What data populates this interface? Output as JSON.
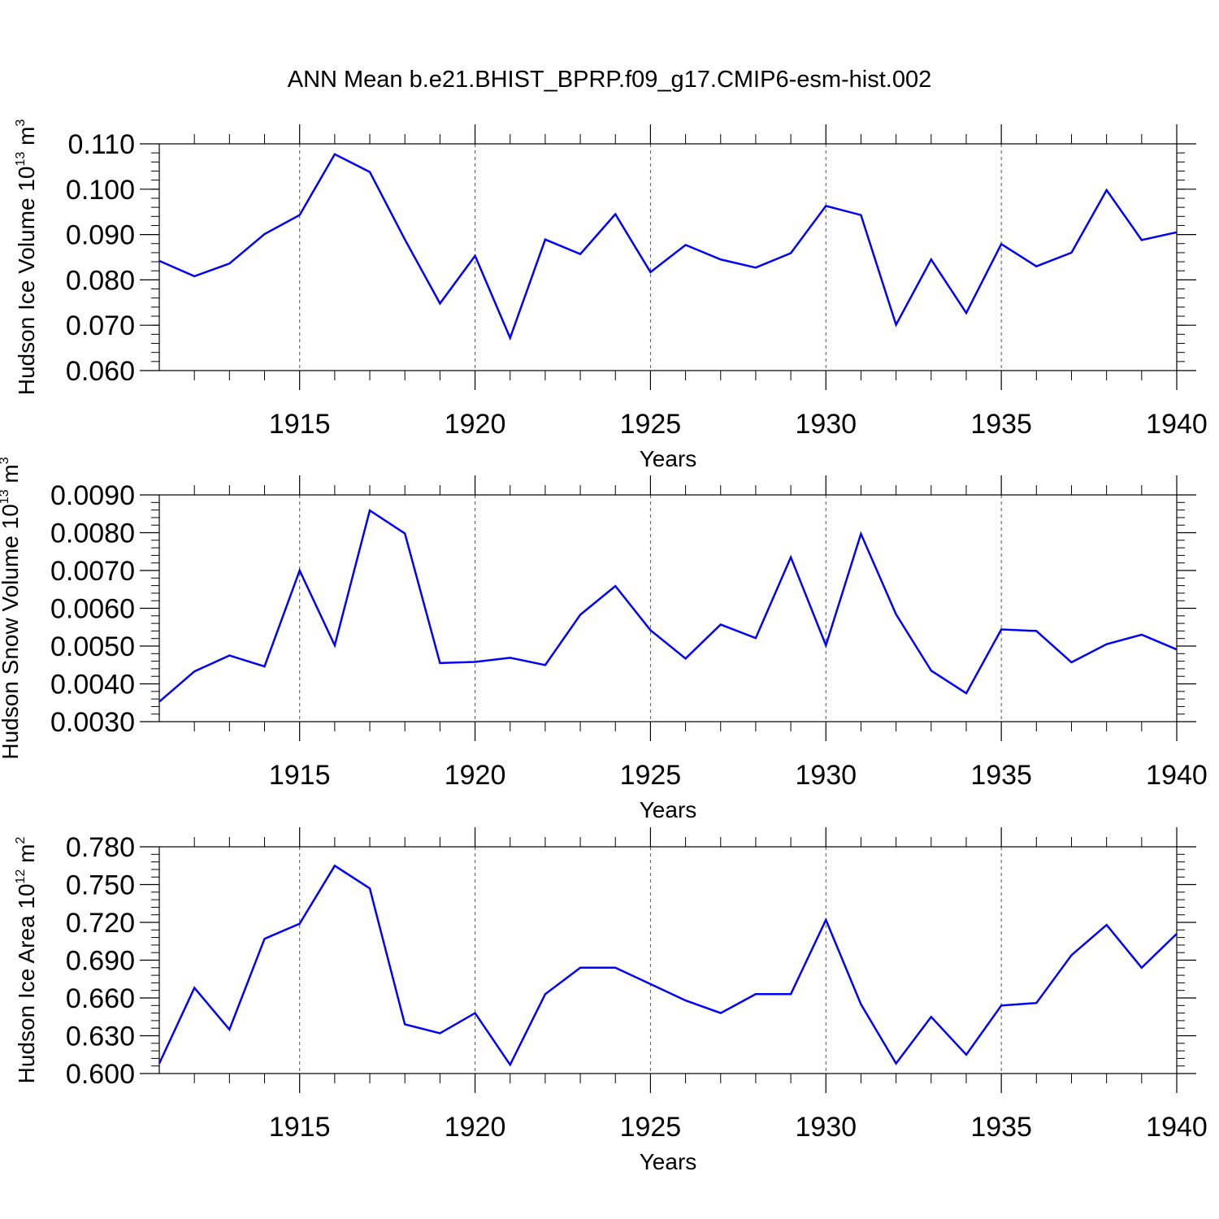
{
  "title": "ANN Mean b.e21.BHIST_BPRP.f09_g17.CMIP6-esm-hist.002",
  "colors": {
    "line": "#0000ff",
    "axis": "#000000",
    "grid": "#555555"
  },
  "chart_data": [
    {
      "type": "line",
      "ylabel_text": "Hudson Ice Volume 10",
      "ylabel_exp": "13",
      "ylabel_unit": " m",
      "ylabel_unit_exp": "3",
      "xlabel": "Years",
      "xlim": [
        1911,
        1940
      ],
      "ylim": [
        0.06,
        0.11
      ],
      "yticks": [
        "0.060",
        "0.070",
        "0.080",
        "0.090",
        "0.100",
        "0.110"
      ],
      "ytick_values": [
        0.06,
        0.07,
        0.08,
        0.09,
        0.1,
        0.11
      ],
      "ytick_minor_step": 0.002,
      "xticks": [
        1915,
        1920,
        1925,
        1930,
        1935,
        1940
      ],
      "x": [
        1911,
        1912,
        1913,
        1914,
        1915,
        1916,
        1917,
        1918,
        1919,
        1920,
        1921,
        1922,
        1923,
        1924,
        1925,
        1926,
        1927,
        1928,
        1929,
        1930,
        1931,
        1932,
        1933,
        1934,
        1935,
        1936,
        1937,
        1938,
        1939,
        1940
      ],
      "values": [
        0.0842,
        0.0808,
        0.0836,
        0.0901,
        0.0943,
        0.1077,
        0.1038,
        0.0889,
        0.0748,
        0.0853,
        0.0672,
        0.0889,
        0.0857,
        0.0945,
        0.0817,
        0.0877,
        0.0845,
        0.0827,
        0.0859,
        0.0963,
        0.0943,
        0.0701,
        0.0845,
        0.0727,
        0.0879,
        0.083,
        0.086,
        0.0998,
        0.0888,
        0.0905
      ]
    },
    {
      "type": "line",
      "ylabel_text": "Hudson Snow Volume 10",
      "ylabel_exp": "13",
      "ylabel_unit": " m",
      "ylabel_unit_exp": "3",
      "xlabel": "Years",
      "xlim": [
        1911,
        1940
      ],
      "ylim": [
        0.003,
        0.009
      ],
      "yticks": [
        "0.0030",
        "0.0040",
        "0.0050",
        "0.0060",
        "0.0070",
        "0.0080",
        "0.0090"
      ],
      "ytick_values": [
        0.003,
        0.004,
        0.005,
        0.006,
        0.007,
        0.008,
        0.009
      ],
      "ytick_minor_step": 0.0002,
      "xticks": [
        1915,
        1920,
        1925,
        1930,
        1935,
        1940
      ],
      "x": [
        1911,
        1912,
        1913,
        1914,
        1915,
        1916,
        1917,
        1918,
        1919,
        1920,
        1921,
        1922,
        1923,
        1924,
        1925,
        1926,
        1927,
        1928,
        1929,
        1930,
        1931,
        1932,
        1933,
        1934,
        1935,
        1936,
        1937,
        1938,
        1939,
        1940
      ],
      "values": [
        0.00353,
        0.00433,
        0.00475,
        0.00446,
        0.007,
        0.00502,
        0.00859,
        0.00798,
        0.00455,
        0.00458,
        0.00469,
        0.0045,
        0.00583,
        0.00659,
        0.00542,
        0.00467,
        0.00557,
        0.00521,
        0.00735,
        0.00502,
        0.00797,
        0.00584,
        0.00435,
        0.00375,
        0.00544,
        0.0054,
        0.00457,
        0.00505,
        0.0053,
        0.00491
      ]
    },
    {
      "type": "line",
      "ylabel_text": "Hudson Ice Area 10",
      "ylabel_exp": "12",
      "ylabel_unit": " m",
      "ylabel_unit_exp": "2",
      "xlabel": "Years",
      "xlim": [
        1911,
        1940
      ],
      "ylim": [
        0.6,
        0.78
      ],
      "yticks": [
        "0.600",
        "0.630",
        "0.660",
        "0.690",
        "0.720",
        "0.750",
        "0.780"
      ],
      "ytick_values": [
        0.6,
        0.63,
        0.66,
        0.69,
        0.72,
        0.75,
        0.78
      ],
      "ytick_minor_step": 0.006,
      "xticks": [
        1915,
        1920,
        1925,
        1930,
        1935,
        1940
      ],
      "x": [
        1911,
        1912,
        1913,
        1914,
        1915,
        1916,
        1917,
        1918,
        1919,
        1920,
        1921,
        1922,
        1923,
        1924,
        1925,
        1926,
        1927,
        1928,
        1929,
        1930,
        1931,
        1932,
        1933,
        1934,
        1935,
        1936,
        1937,
        1938,
        1939,
        1940
      ],
      "values": [
        0.608,
        0.668,
        0.635,
        0.707,
        0.719,
        0.765,
        0.747,
        0.639,
        0.632,
        0.648,
        0.607,
        0.663,
        0.684,
        0.684,
        0.671,
        0.658,
        0.648,
        0.663,
        0.663,
        0.722,
        0.655,
        0.608,
        0.645,
        0.615,
        0.654,
        0.656,
        0.694,
        0.718,
        0.684,
        0.711
      ]
    }
  ]
}
